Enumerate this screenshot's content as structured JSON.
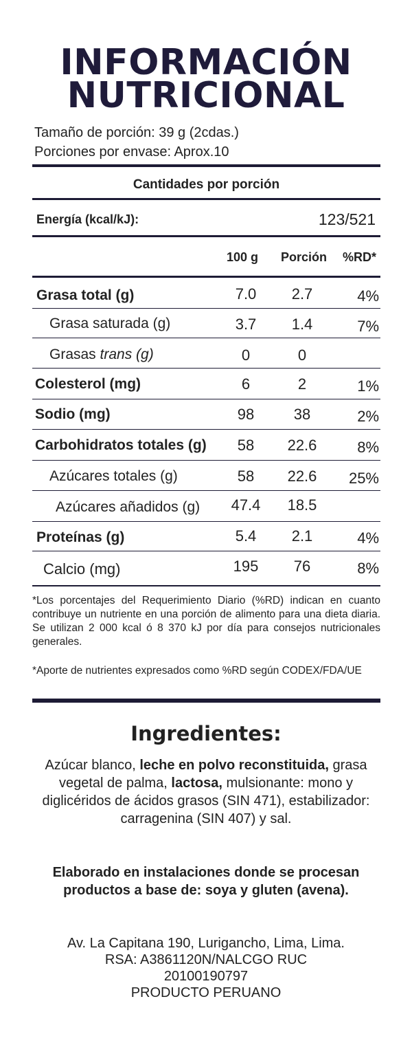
{
  "title": {
    "line1": "INFORMACIÓN",
    "line2": "NUTRICIONAL"
  },
  "serving": {
    "size": "Tamaño de porción: 39 g (2cdas.)",
    "per_package": "Porciones por envase: Aprox.10"
  },
  "amounts_header": "Cantidades por porción",
  "energy": {
    "label": "Energía (kcal/kJ):",
    "value": "123/521"
  },
  "columns": {
    "per100": "100 g",
    "portion": "Porción",
    "rd": "%RD*"
  },
  "rows": [
    {
      "name": "Grasa total (g)",
      "per100": "7.0",
      "portion": "2.7",
      "rd": "4%"
    },
    {
      "name": "Grasa saturada (g)",
      "per100": "3.7",
      "portion": "1.4",
      "rd": "7%"
    },
    {
      "name_prefix": "Grasas ",
      "name_italic": "trans (g)",
      "per100": "0",
      "portion": "0",
      "rd": ""
    },
    {
      "name": "Colesterol (mg)",
      "per100": "6",
      "portion": "2",
      "rd": "1%"
    },
    {
      "name": "Sodio (mg)",
      "per100": "98",
      "portion": "38",
      "rd": "2%"
    },
    {
      "name": "Carbohidratos totales (g)",
      "per100": "58",
      "portion": "22.6",
      "rd": "8%"
    },
    {
      "name": "Azúcares totales (g)",
      "per100": "58",
      "portion": "22.6",
      "rd": "25%"
    },
    {
      "name": "Azúcares añadidos (g)",
      "per100": "47.4",
      "portion": "18.5",
      "rd": ""
    },
    {
      "name": "Proteínas (g)",
      "per100": "5.4",
      "portion": "2.1",
      "rd": "4%"
    },
    {
      "name": "Calcio (mg)",
      "per100": "195",
      "portion": "76",
      "rd": "8%"
    }
  ],
  "footnotes": {
    "rd_note": "*Los porcentajes del Requerimiento Diario (%RD) indican en cuanto contribuye un nutriente en una porción de alimento para una dieta diaria. Se utilizan 2 000 kcal ó 8 370 kJ por día para consejos nutricionales generales.",
    "source_note": "*Aporte de nutrientes expresados como %RD según CODEX/FDA/UE"
  },
  "ingredients": {
    "title": "Ingredientes:",
    "part1": "Azúcar blanco, ",
    "part2_bold": "leche en polvo reconstituida,",
    "part3": " grasa vegetal de palma, ",
    "part4_bold": "lactosa,",
    "part5": "  mulsionante: mono y diglicéridos de ácidos grasos (SIN 471), estabilizador: carragenina (SIN 407) y sal."
  },
  "allergen_note": "Elaborado en instalaciones donde se procesan productos a base de: soya y gluten (avena).",
  "address": {
    "line1": "Av. La Capitana 190, Lurigancho, Lima, Lima.",
    "line2": "RSA: A3861120N/NALCGO RUC",
    "line3": "20100190797",
    "line4": "PRODUCTO PERUANO"
  },
  "colors": {
    "ink": "#1d1b35",
    "background": "#ffffff"
  }
}
